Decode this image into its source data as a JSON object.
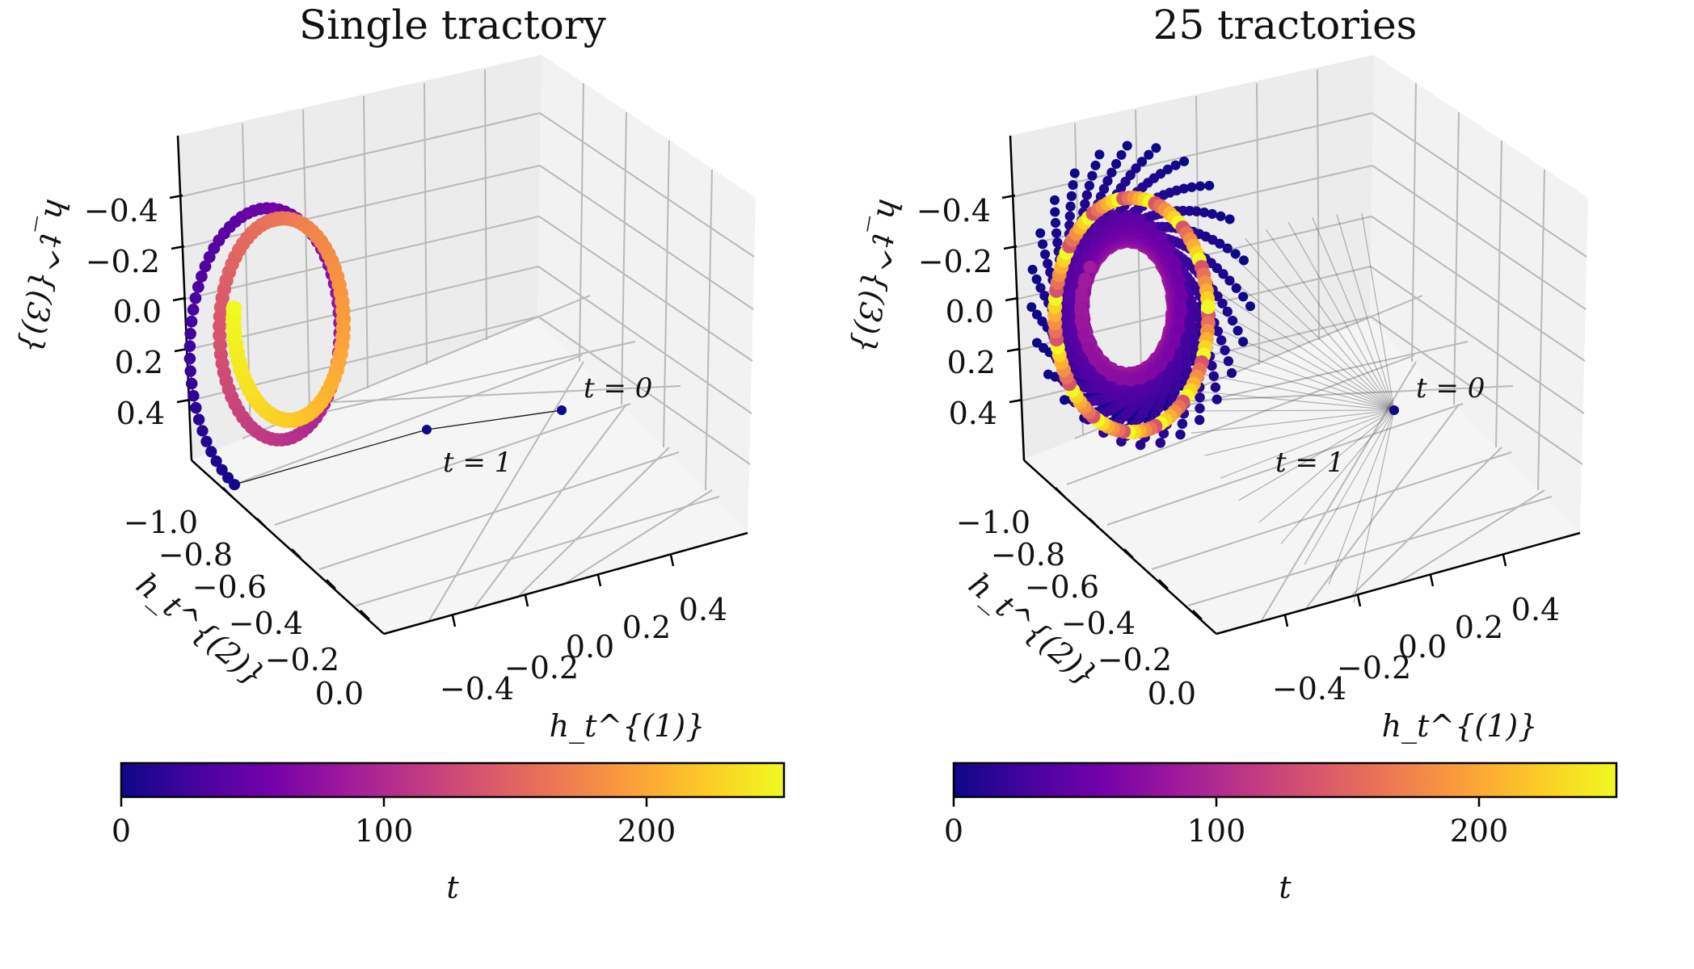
{
  "panels": [
    {
      "title": "Single tractory",
      "zlabel": "h_t^{(3)}",
      "ylabel": "h_t^{(2)}",
      "xlabel": "h_t^{(1)}",
      "z_ticks": [
        "−0.4",
        "−0.2",
        "0.0",
        "0.2",
        "0.4"
      ],
      "y_ticks": [
        "−1.0",
        "−0.8",
        "−0.6",
        "−0.4",
        "−0.2",
        "0.0"
      ],
      "x_ticks": [
        "−0.4",
        "−0.2",
        "0.0",
        "0.2",
        "0.4"
      ],
      "annotation_t0": "t = 0",
      "annotation_t1": "t = 1",
      "colorbar": {
        "ticks": [
          "0",
          "100",
          "200"
        ],
        "label": "t"
      }
    },
    {
      "title": "25 tractories",
      "zlabel": "h_t^{(3)}",
      "ylabel": "h_t^{(2)}",
      "xlabel": "h_t^{(1)}",
      "z_ticks": [
        "−0.4",
        "−0.2",
        "0.0",
        "0.2",
        "0.4"
      ],
      "y_ticks": [
        "−1.0",
        "−0.8",
        "−0.6",
        "−0.4",
        "−0.2",
        "0.0"
      ],
      "x_ticks": [
        "−0.4",
        "−0.2",
        "0.0",
        "0.2",
        "0.4"
      ],
      "annotation_t0": "t = 0",
      "annotation_t1": "t = 1",
      "colorbar": {
        "ticks": [
          "0",
          "100",
          "200"
        ],
        "label": "t"
      }
    }
  ],
  "chart_data": [
    {
      "type": "scatter",
      "subtype": "3d-trajectory",
      "title": "Single tractory",
      "xlabel": "h_t^{(1)}",
      "ylabel": "h_t^{(2)}",
      "zlabel": "h_t^{(3)}",
      "n_trajectories": 1,
      "t_range": [
        0,
        250
      ],
      "colormap": "plasma",
      "start_point": {
        "t": 0
      },
      "second_point": {
        "t": 1
      }
    },
    {
      "type": "scatter",
      "subtype": "3d-trajectory",
      "title": "25 tractories",
      "xlabel": "h_t^{(1)}",
      "ylabel": "h_t^{(2)}",
      "zlabel": "h_t^{(3)}",
      "n_trajectories": 25,
      "t_range": [
        0,
        250
      ],
      "colormap": "plasma"
    }
  ],
  "colormap_stops": [
    "#0d0887",
    "#46039f",
    "#7201a8",
    "#9c179e",
    "#bd3786",
    "#d8576b",
    "#ed7953",
    "#fb9f3a",
    "#fdca26",
    "#f0f921"
  ]
}
